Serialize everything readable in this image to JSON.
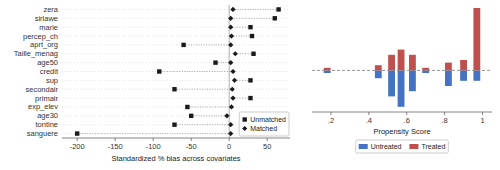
{
  "chart_data": [
    {
      "type": "dot",
      "orientation": "horizontal",
      "categories": [
        "zera",
        "sirlawe",
        "marie",
        "percep_ch",
        "aprt_org",
        "Taille_menag",
        "age50",
        "credit",
        "sup",
        "secondair",
        "primair",
        "exp_elev",
        "age30",
        "tontine",
        "sanguere"
      ],
      "series": [
        {
          "name": "Unmatched",
          "color": "#1a1a1a",
          "marker": "square",
          "values": [
            65,
            60,
            28,
            30,
            -60,
            32,
            -18,
            -92,
            28,
            -72,
            28,
            -55,
            -50,
            -72,
            -200
          ]
        },
        {
          "name": "Matched",
          "color": "#1a1a1a",
          "marker": "diamond",
          "values": [
            5,
            2,
            2,
            3,
            2,
            8,
            2,
            5,
            7,
            4,
            5,
            3,
            -3,
            2,
            2
          ]
        }
      ],
      "xlabel": "Standardized % bias across covariates",
      "xlim": [
        -220,
        80
      ],
      "xticks": [
        -200,
        -150,
        -100,
        -50,
        0,
        50
      ],
      "grid": true,
      "legend": "lower right"
    },
    {
      "type": "bar",
      "x": [
        0.18,
        0.45,
        0.52,
        0.57,
        0.63,
        0.7,
        0.82,
        0.9,
        0.97
      ],
      "series": [
        {
          "name": "Untreated",
          "color": "#4472c4",
          "values": [
            -0.5,
            -1.5,
            -5.0,
            -7.0,
            -4.0,
            -0.5,
            -3.0,
            -2.0,
            -2.0
          ]
        },
        {
          "name": "Treated",
          "color": "#c0504d",
          "values": [
            0.5,
            1.0,
            3.0,
            4.0,
            3.0,
            0.5,
            1.5,
            2.0,
            12.0
          ]
        }
      ],
      "xlabel": "Propensity Score",
      "xlim": [
        0.1,
        1.05
      ],
      "xticks": [
        {
          "value": 0.2,
          "label": ".2"
        },
        {
          "value": 0.4,
          "label": ".4"
        },
        {
          "value": 0.6,
          "label": ".6"
        },
        {
          "value": 0.8,
          "label": ".8"
        },
        1
      ],
      "ylim": [
        -8,
        12
      ],
      "tick_labels": "x",
      "legend": "bottom"
    }
  ]
}
